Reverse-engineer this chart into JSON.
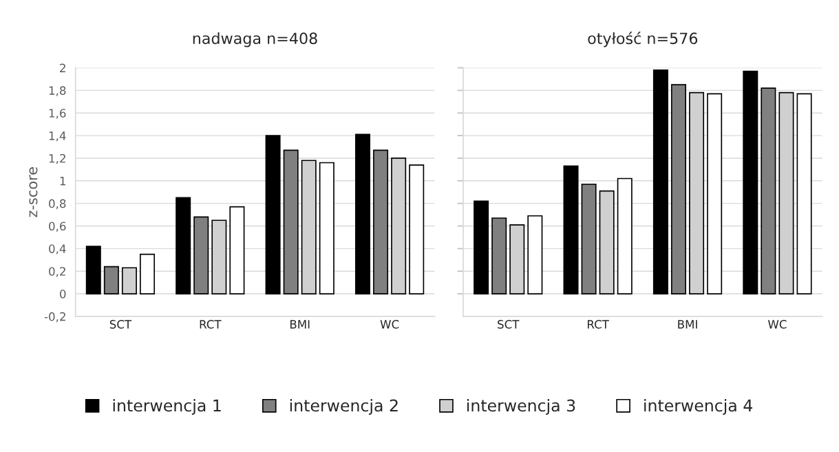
{
  "chart_data": [
    {
      "type": "bar",
      "title": "nadwaga n=408",
      "ylabel": "z-score",
      "categories": [
        "SCT",
        "RCT",
        "BMI",
        "WC"
      ],
      "series": [
        {
          "name": "interwencja 1",
          "color": "#000000",
          "values": [
            0.42,
            0.85,
            1.4,
            1.41
          ]
        },
        {
          "name": "interwencja 2",
          "color": "#808080",
          "values": [
            0.24,
            0.68,
            1.27,
            1.27
          ]
        },
        {
          "name": "interwencja 3",
          "color": "#d0d0d0",
          "values": [
            0.23,
            0.65,
            1.18,
            1.2
          ]
        },
        {
          "name": "interwencja 4",
          "color": "#ffffff",
          "values": [
            0.35,
            0.77,
            1.16,
            1.14
          ]
        }
      ],
      "ylim": [
        -0.2,
        2
      ],
      "yticks": [
        {
          "value": -0.2,
          "label": "-0,2"
        },
        0,
        {
          "value": 0.2,
          "label": "0,2"
        },
        {
          "value": 0.4,
          "label": "0,4"
        },
        {
          "value": 0.6,
          "label": "0,6"
        },
        {
          "value": 0.8,
          "label": "0,8"
        },
        1,
        {
          "value": 1.2,
          "label": "1,2"
        },
        {
          "value": 1.4,
          "label": "1,4"
        },
        {
          "value": 1.6,
          "label": "1,6"
        },
        {
          "value": 1.8,
          "label": "1,8"
        },
        2
      ],
      "grid": "y",
      "legend": "bottom"
    },
    {
      "type": "bar",
      "title": "otyłość n=576",
      "categories": [
        "SCT",
        "RCT",
        "BMI",
        "WC"
      ],
      "series": [
        {
          "color": "#000000",
          "values": [
            0.82,
            1.13,
            1.98,
            1.97
          ]
        },
        {
          "color": "#808080",
          "values": [
            0.67,
            0.97,
            1.85,
            1.82
          ]
        },
        {
          "color": "#d0d0d0",
          "values": [
            0.61,
            0.91,
            1.78,
            1.78
          ]
        },
        {
          "color": "#ffffff",
          "values": [
            0.69,
            1.02,
            1.77,
            1.77
          ]
        }
      ],
      "ylim": [
        -0.2,
        2
      ],
      "yticks": [
        0,
        0.2,
        0.4,
        0.6,
        0.8,
        1,
        1.2,
        1.4,
        1.6,
        1.8,
        2
      ],
      "tick_labels": "x",
      "grid": "y"
    }
  ]
}
